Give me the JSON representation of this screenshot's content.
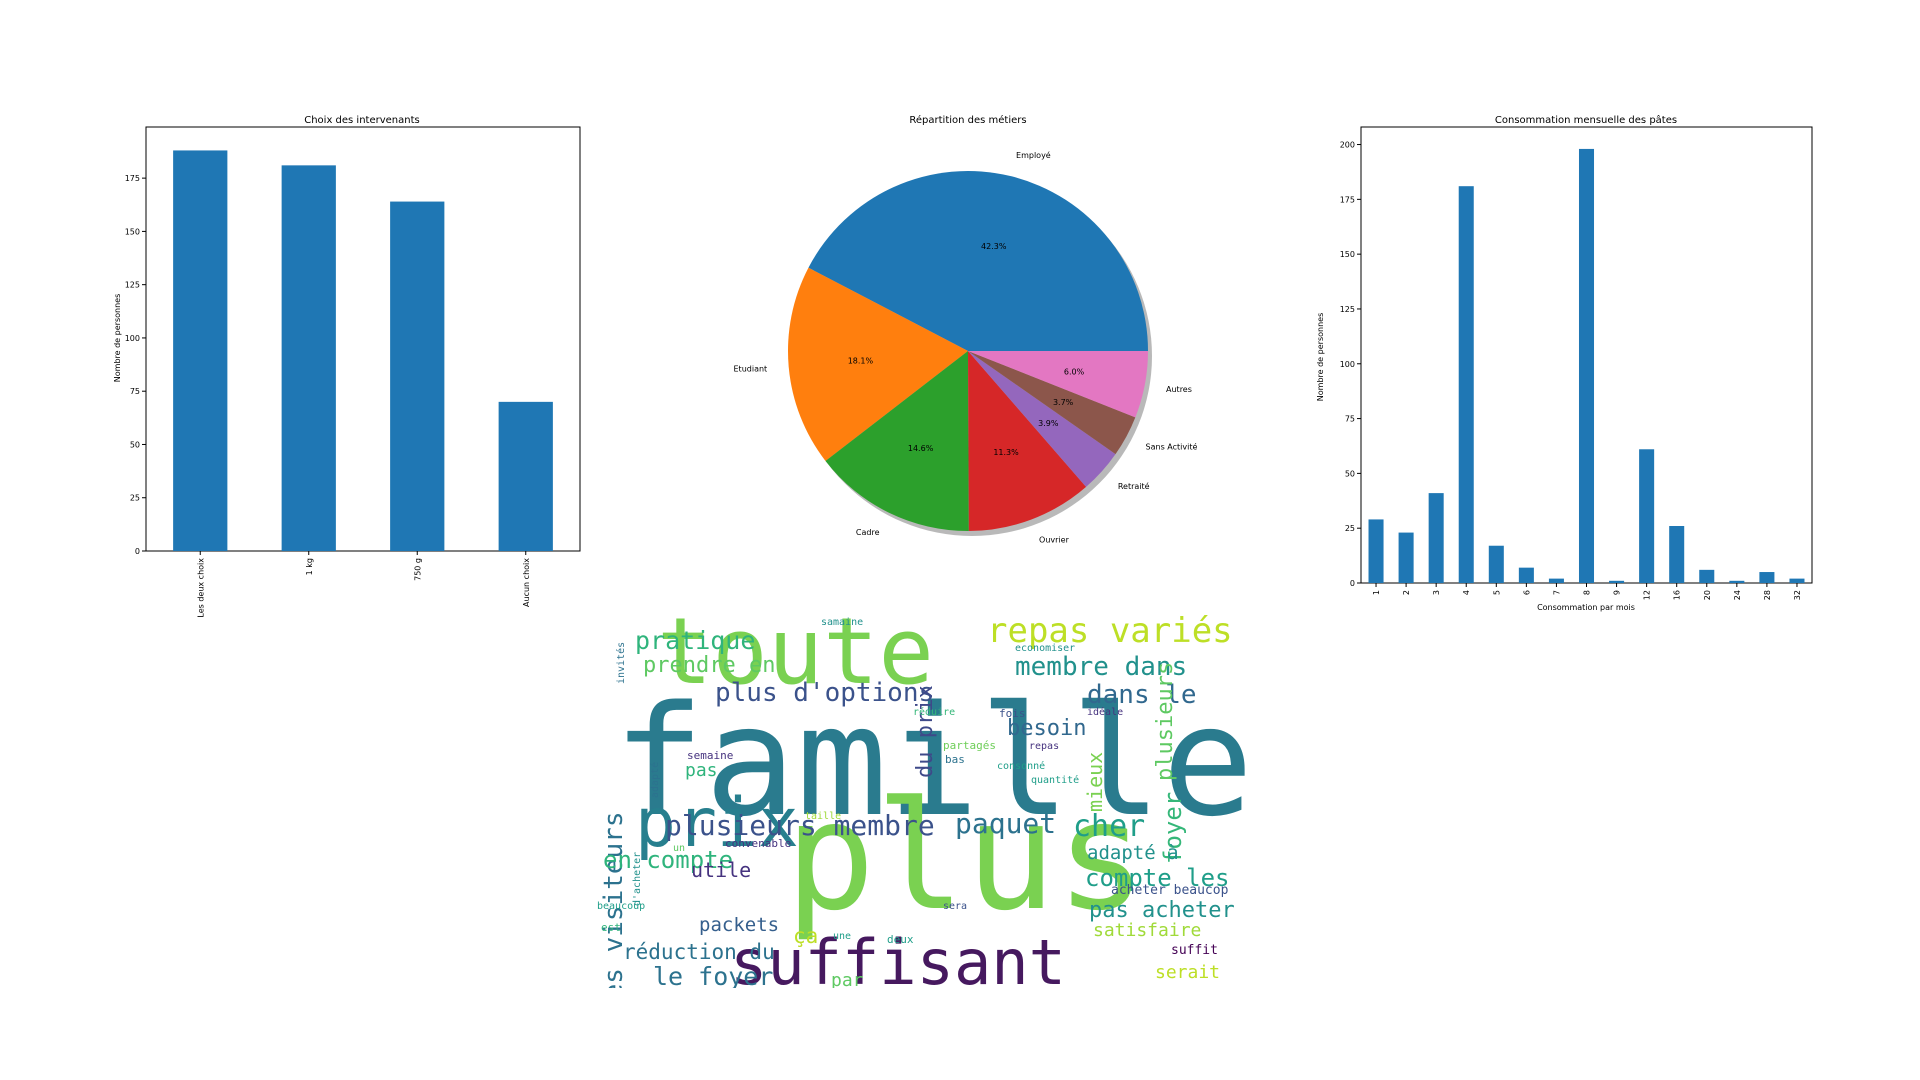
{
  "chart_data": [
    {
      "type": "bar",
      "title": "Choix des intervenants",
      "xlabel": "",
      "ylabel": "Nombre de personnes",
      "categories": [
        "Les deux choix",
        "1 kg",
        "750 g",
        "Aucun choix"
      ],
      "values": [
        188,
        181,
        164,
        70
      ],
      "ylim": [
        0,
        199
      ],
      "yticks": [
        0,
        25,
        50,
        75,
        100,
        125,
        150,
        175
      ],
      "color": "#1f77b4",
      "grid": false
    },
    {
      "type": "pie",
      "title": "Répartition des métiers",
      "labels": [
        "Employé",
        "Etudiant",
        "Cadre",
        "Ouvrier",
        "Retraité",
        "Sans Activité",
        "Autres"
      ],
      "values": [
        42.3,
        18.1,
        14.6,
        11.3,
        3.9,
        3.7,
        6.0
      ],
      "pct_labels": [
        "42.3%",
        "18.1%",
        "14.6%",
        "11.3%",
        "3.9%",
        "3.7%",
        "6.0%"
      ],
      "colors": [
        "#1f77b4",
        "#ff7f0e",
        "#2ca02c",
        "#d62728",
        "#9467bd",
        "#8c564b",
        "#e377c2"
      ],
      "shadow": true
    },
    {
      "type": "bar",
      "title": "Consommation mensuelle des pâtes",
      "xlabel": "Consommation par mois",
      "ylabel": "Nombre de personnes",
      "categories": [
        "1",
        "2",
        "3",
        "4",
        "5",
        "6",
        "7",
        "8",
        "9",
        "12",
        "16",
        "20",
        "24",
        "28",
        "32"
      ],
      "values": [
        29,
        23,
        41,
        181,
        17,
        7,
        2,
        198,
        1,
        61,
        26,
        6,
        1,
        5,
        2
      ],
      "ylim": [
        0,
        208
      ],
      "yticks": [
        0,
        25,
        50,
        75,
        100,
        125,
        150,
        175,
        200
      ],
      "color": "#1f77b4",
      "grid": false
    }
  ],
  "wordcloud": {
    "background": "#ffffff",
    "words": [
      {
        "text": "famille",
        "weight": 1.0,
        "color": "#2a7b8e"
      },
      {
        "text": "plus",
        "weight": 0.95,
        "color": "#7ad151"
      },
      {
        "text": "toute",
        "weight": 0.62,
        "color": "#7ad151"
      },
      {
        "text": "suffisant",
        "weight": 0.5,
        "color": "#46195f"
      },
      {
        "text": "prix",
        "weight": 0.55,
        "color": "#277f8e"
      },
      {
        "text": "repas variés",
        "weight": 0.3,
        "color": "#bddf26"
      },
      {
        "text": "pratique",
        "weight": 0.22,
        "color": "#2fb47c"
      },
      {
        "text": "prendre en",
        "weight": 0.2,
        "color": "#5ec962"
      },
      {
        "text": "membre dans",
        "weight": 0.24,
        "color": "#21918c"
      },
      {
        "text": "plus d'options",
        "weight": 0.24,
        "color": "#3b528b"
      },
      {
        "text": "dans le",
        "weight": 0.24,
        "color": "#31688e"
      },
      {
        "text": "les visiteurs",
        "weight": 0.24,
        "color": "#2c728e"
      },
      {
        "text": "plusieurs",
        "weight": 0.2,
        "color": "#5ec962"
      },
      {
        "text": "du prix",
        "weight": 0.2,
        "color": "#3e4989"
      },
      {
        "text": "besoin",
        "weight": 0.18,
        "color": "#31688e"
      },
      {
        "text": "mieux",
        "weight": 0.16,
        "color": "#7ad151"
      },
      {
        "text": "plusieurs membre",
        "weight": 0.24,
        "color": "#3b528b"
      },
      {
        "text": "paquet",
        "weight": 0.24,
        "color": "#2c728e"
      },
      {
        "text": "cher",
        "weight": 0.24,
        "color": "#1f9e89"
      },
      {
        "text": "foyer",
        "weight": 0.2,
        "color": "#35b779"
      },
      {
        "text": "adapté à",
        "weight": 0.17,
        "color": "#21918c"
      },
      {
        "text": "compte les",
        "weight": 0.21,
        "color": "#1f9e89"
      },
      {
        "text": "en compte",
        "weight": 0.21,
        "color": "#2fb47c"
      },
      {
        "text": "utile",
        "weight": 0.17,
        "color": "#46337f"
      },
      {
        "text": "pas acheter",
        "weight": 0.2,
        "color": "#21918c"
      },
      {
        "text": "satisfaire",
        "weight": 0.17,
        "color": "#a0da39"
      },
      {
        "text": "packets",
        "weight": 0.17,
        "color": "#355f8d"
      },
      {
        "text": "ça",
        "weight": 0.17,
        "color": "#bddf26"
      },
      {
        "text": "réduction du",
        "weight": 0.19,
        "color": "#2c728e"
      },
      {
        "text": "le foyer",
        "weight": 0.22,
        "color": "#2c728e"
      },
      {
        "text": "par",
        "weight": 0.16,
        "color": "#5ec962"
      },
      {
        "text": "pas",
        "weight": 0.15,
        "color": "#2fb47c"
      },
      {
        "text": "suffit",
        "weight": 0.12,
        "color": "#440154"
      },
      {
        "text": "serait",
        "weight": 0.15,
        "color": "#bddf26"
      },
      {
        "text": "acheter beaucop",
        "weight": 0.12,
        "color": "#3b528b"
      },
      {
        "text": "semaine",
        "weight": 0.1,
        "color": "#46337f"
      },
      {
        "text": "samaine",
        "weight": 0.09,
        "color": "#21918c"
      },
      {
        "text": "invités",
        "weight": 0.09,
        "color": "#2c728e"
      },
      {
        "text": "economiser",
        "weight": 0.09,
        "color": "#21918c"
      },
      {
        "text": "réduire",
        "weight": 0.09,
        "color": "#35b779"
      },
      {
        "text": "fois",
        "weight": 0.1,
        "color": "#3b528b"
      },
      {
        "text": "idéale",
        "weight": 0.09,
        "color": "#46337f"
      },
      {
        "text": "repas",
        "weight": 0.09,
        "color": "#46337f"
      },
      {
        "text": "partagés",
        "weight": 0.1,
        "color": "#6ece58"
      },
      {
        "text": "bas",
        "weight": 0.1,
        "color": "#2c728e"
      },
      {
        "text": "consonné",
        "weight": 0.09,
        "color": "#1f9e89"
      },
      {
        "text": "quantité",
        "weight": 0.09,
        "color": "#1f9e89"
      },
      {
        "text": "adapté",
        "weight": 0.09,
        "color": "#2c728e"
      },
      {
        "text": "taille",
        "weight": 0.09,
        "color": "#a0da39"
      },
      {
        "text": "convenable",
        "weight": 0.1,
        "color": "#46337f"
      },
      {
        "text": "un",
        "weight": 0.09,
        "color": "#5ec962"
      },
      {
        "text": "d'acheter",
        "weight": 0.09,
        "color": "#21918c"
      },
      {
        "text": "beaucoup",
        "weight": 0.09,
        "color": "#1f9e89"
      },
      {
        "text": "est",
        "weight": 0.1,
        "color": "#2fb47c"
      },
      {
        "text": "sera",
        "weight": 0.09,
        "color": "#3b528b"
      },
      {
        "text": "une",
        "weight": 0.09,
        "color": "#1f9e89"
      },
      {
        "text": "deux",
        "weight": 0.1,
        "color": "#1f9e89"
      }
    ]
  }
}
